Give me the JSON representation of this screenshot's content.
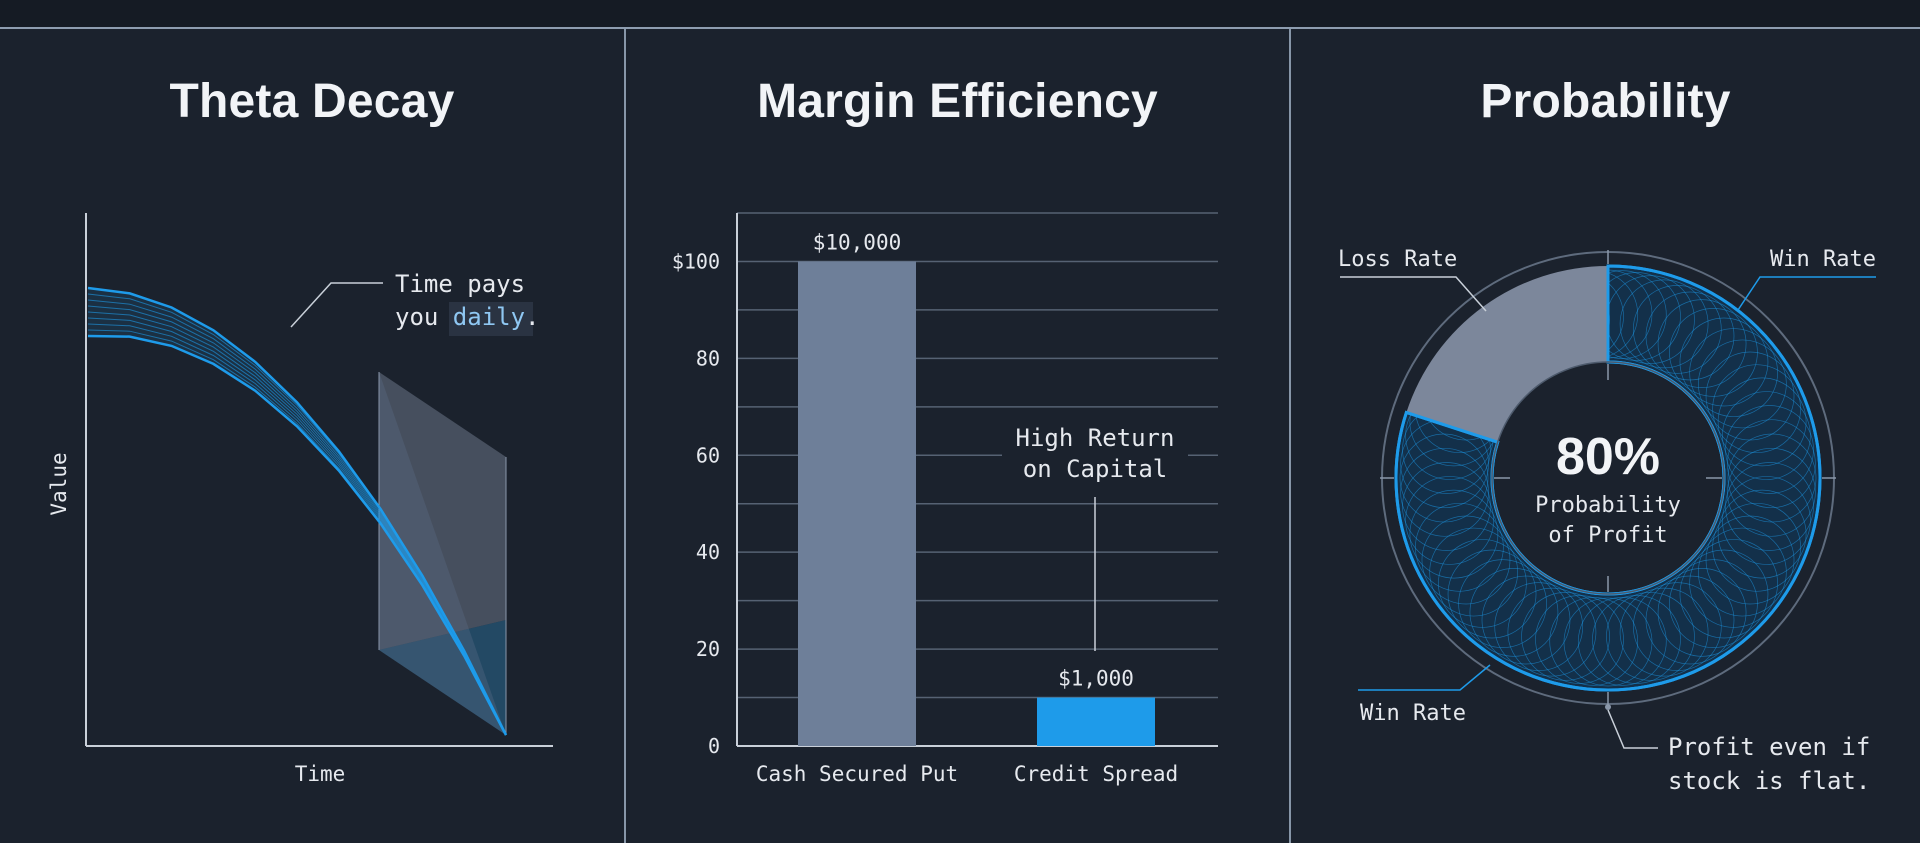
{
  "colors": {
    "background": "#1b222d",
    "accent_blue": "#1e9bea",
    "bar_gray": "#6e7f99",
    "axis": "#c9d0d9",
    "grid": "#566273",
    "text": "#e6e9ee",
    "highlight_text": "#8fc7f2"
  },
  "panels": {
    "theta": {
      "title": "Theta Decay",
      "xlabel": "Time",
      "ylabel": "Value",
      "annotation_line1": "Time pays",
      "annotation_line2_prefix": "you ",
      "annotation_highlight": "daily",
      "annotation_suffix": "."
    },
    "margin": {
      "title": "Margin Efficiency"
    },
    "probability": {
      "title": "Probability"
    }
  },
  "chart_data": [
    {
      "type": "line",
      "title": "Theta Decay",
      "xlabel": "Time",
      "ylabel": "Value",
      "x": [
        0,
        0.1,
        0.2,
        0.3,
        0.4,
        0.5,
        0.6,
        0.7,
        0.8,
        0.9,
        1.0
      ],
      "series": [
        {
          "values": [
            1.0,
            0.99,
            0.96,
            0.91,
            0.84,
            0.75,
            0.64,
            0.51,
            0.36,
            0.19,
            0.0
          ]
        }
      ],
      "annotation": "Time pays you daily."
    },
    {
      "type": "bar",
      "title": "Margin Efficiency",
      "categories": [
        "Cash Secured Put",
        "Credit Spread"
      ],
      "values": [
        100,
        10
      ],
      "data_labels": [
        "$10,000",
        "$1,000"
      ],
      "ylim": [
        0,
        110
      ],
      "yticks": [
        0,
        20,
        40,
        60,
        80,
        100
      ],
      "ytick_labels": [
        "0",
        "20",
        "40",
        "60",
        "80",
        "$100"
      ],
      "grid": true,
      "annotation_line1": "High Return",
      "annotation_line2": "on Capital"
    },
    {
      "type": "pie",
      "title": "Probability",
      "slices": [
        {
          "label": "Win Rate",
          "value": 80
        },
        {
          "label": "Loss Rate",
          "value": 20
        }
      ],
      "center_value": "80%",
      "center_line1": "Probability",
      "center_line2": "of Profit",
      "label_win_top": "Win Rate",
      "label_win_bottom": "Win Rate",
      "label_loss": "Loss Rate",
      "note_line1": "Profit even if",
      "note_line2": "stock is flat."
    }
  ]
}
